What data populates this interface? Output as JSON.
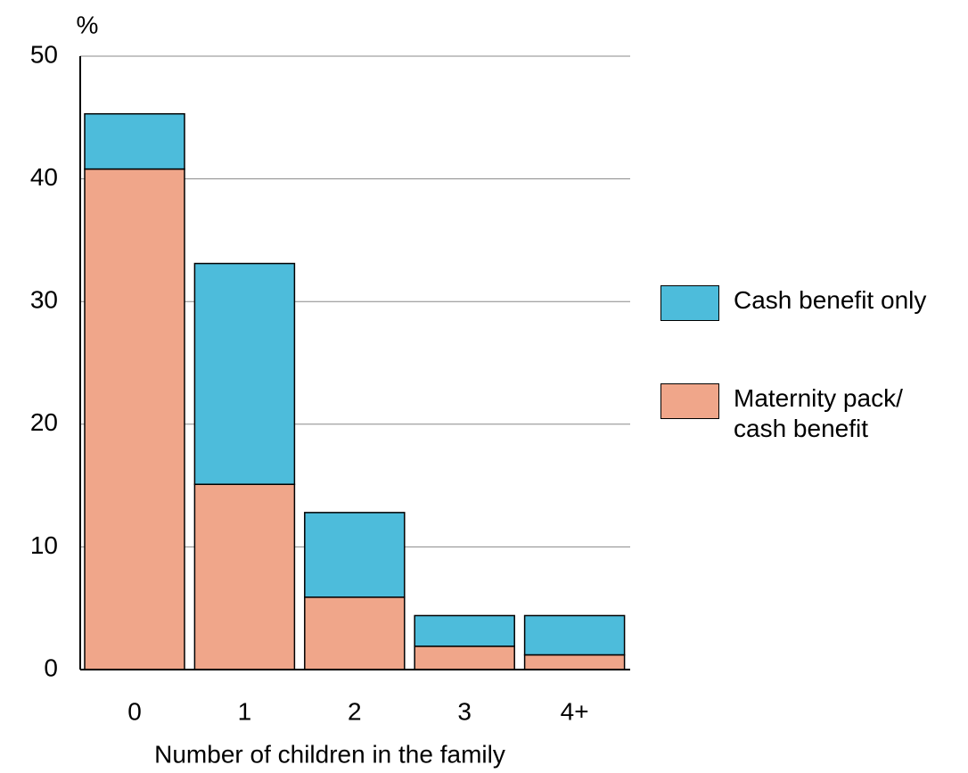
{
  "chart_data": {
    "type": "stacked_bar",
    "y_unit": "%",
    "x_label": "Number of children in the family",
    "categories": [
      "0",
      "1",
      "2",
      "3",
      "4+"
    ],
    "series": [
      {
        "name": "Maternity pack/ cash benefit",
        "color": "#f0a68a",
        "values": [
          40.8,
          15.1,
          5.9,
          1.9,
          1.2
        ]
      },
      {
        "name": "Cash benefit only",
        "color": "#4dbcdb",
        "values": [
          4.5,
          18.0,
          6.9,
          2.5,
          3.2
        ]
      }
    ],
    "ylim": [
      0,
      50
    ],
    "yticks": [
      0,
      10,
      20,
      30,
      40,
      50
    ],
    "grid": true,
    "legend": "right"
  }
}
